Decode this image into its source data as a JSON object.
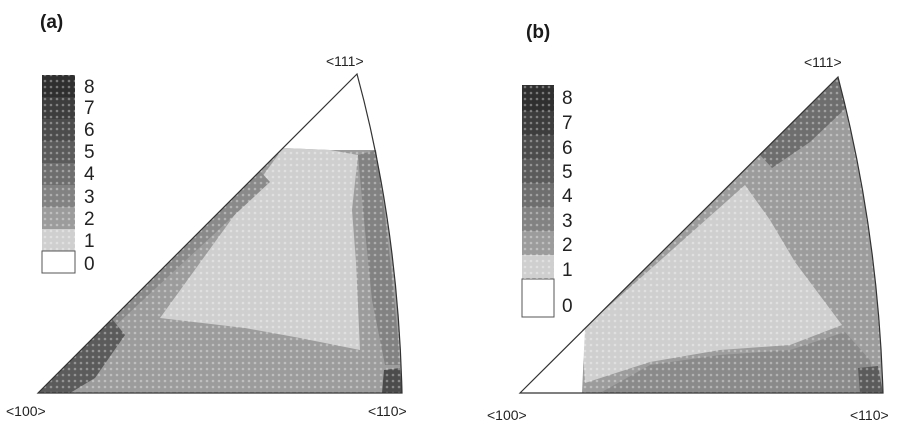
{
  "figure": {
    "panels": [
      {
        "id": "a",
        "label": "(a)",
        "corner_labels": {
          "top": "<111>",
          "left": "<100>",
          "right": "<110>"
        },
        "legend_levels": [
          "8",
          "7",
          "6",
          "5",
          "4",
          "3",
          "2",
          "1",
          "0"
        ]
      },
      {
        "id": "b",
        "label": "(b)",
        "corner_labels": {
          "top": "<111>",
          "left": "<100>",
          "right": "<110>"
        },
        "legend_levels": [
          "8",
          "7",
          "6",
          "5",
          "4",
          "3",
          "2",
          "1",
          "0"
        ]
      }
    ],
    "level_colors": [
      "#2f2f2f",
      "#3d3d3d",
      "#4c4c4c",
      "#5b5b5b",
      "#6e6e6e",
      "#828282",
      "#9c9c9c",
      "#cfcfcf",
      "#ffffff"
    ]
  }
}
